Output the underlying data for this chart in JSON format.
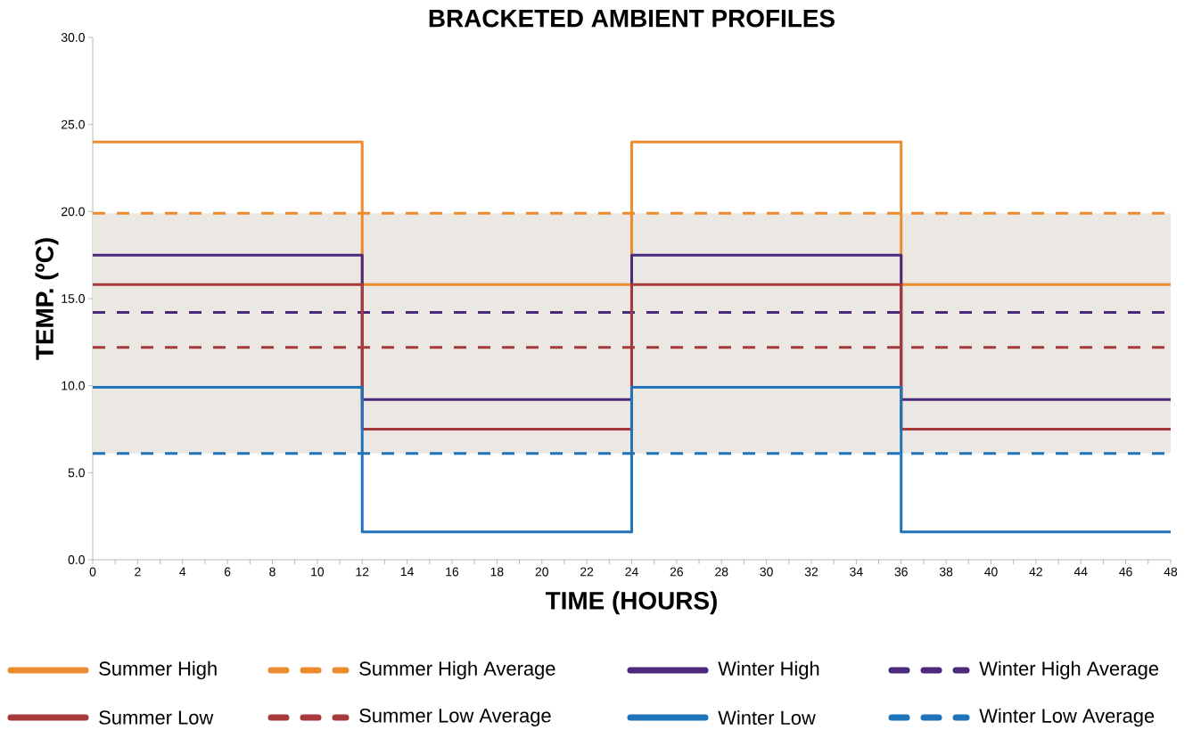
{
  "chart_data": {
    "type": "step",
    "title": "BRACKETED AMBIENT PROFILES",
    "xlabel": "TIME (HOURS)",
    "ylabel": "TEMP. (ºC)",
    "xlim": [
      0,
      48
    ],
    "ylim": [
      0,
      30
    ],
    "xticks": [
      0,
      {
        "value": 1,
        "label": null
      },
      2,
      {
        "value": 3,
        "label": null
      },
      4,
      {
        "value": 5,
        "label": null
      },
      6,
      {
        "value": 7,
        "label": null
      },
      8,
      {
        "value": 9,
        "label": null
      },
      10,
      {
        "value": 11,
        "label": null
      },
      12,
      {
        "value": 13,
        "label": null
      },
      14,
      {
        "value": 15,
        "label": null
      },
      16,
      {
        "value": 17,
        "label": null
      },
      18,
      {
        "value": 19,
        "label": null
      },
      20,
      {
        "value": 21,
        "label": null
      },
      22,
      {
        "value": 23,
        "label": null
      },
      24,
      {
        "value": 25,
        "label": null
      },
      26,
      {
        "value": 27,
        "label": null
      },
      28,
      {
        "value": 29,
        "label": null
      },
      30,
      {
        "value": 31,
        "label": null
      },
      32,
      {
        "value": 33,
        "label": null
      },
      34,
      {
        "value": 35,
        "label": null
      },
      36,
      {
        "value": 37,
        "label": null
      },
      38,
      {
        "value": 39,
        "label": null
      },
      40,
      {
        "value": 41,
        "label": null
      },
      42,
      {
        "value": 43,
        "label": null
      },
      44,
      {
        "value": 45,
        "label": null
      },
      46,
      {
        "value": 47,
        "label": null
      },
      48
    ],
    "yticks": [
      {
        "value": 0,
        "label": "0.0"
      },
      {
        "value": 5,
        "label": "5.0"
      },
      {
        "value": 10,
        "label": "10.0"
      },
      {
        "value": 15,
        "label": "15.0"
      },
      {
        "value": 20,
        "label": "20.0"
      },
      {
        "value": 25,
        "label": "25.0"
      },
      {
        "value": 30,
        "label": "30.0"
      }
    ],
    "legend": "bottom",
    "line_style": "solid",
    "bands": [
      {
        "axis": "y",
        "from": 6.1,
        "to": 19.9,
        "color": "#ebe7e3"
      }
    ],
    "series": [
      {
        "name": "Summer High",
        "color": "#ed8b2f",
        "type": "step",
        "x": [
          0,
          12,
          24,
          36,
          48
        ],
        "values": [
          24,
          15.8,
          24,
          15.8,
          15.8
        ]
      },
      {
        "name": "Summer High Average",
        "color": "#ed8b2f",
        "type": "line",
        "line_style": "dashed",
        "x": [
          0,
          48
        ],
        "values": [
          19.9,
          19.9
        ]
      },
      {
        "name": "Winter High",
        "color": "#4b2a7b",
        "type": "step",
        "x": [
          0,
          12,
          24,
          36,
          48
        ],
        "values": [
          17.5,
          9.2,
          17.5,
          9.2,
          9.2
        ]
      },
      {
        "name": "Winter High Average",
        "color": "#4b2a7b",
        "type": "line",
        "line_style": "dashed",
        "x": [
          0,
          48
        ],
        "values": [
          14.2,
          14.2
        ]
      },
      {
        "name": "Summer Low",
        "color": "#a8393a",
        "type": "step",
        "x": [
          0,
          12,
          24,
          36,
          48
        ],
        "values": [
          15.8,
          7.5,
          15.8,
          7.5,
          7.5
        ]
      },
      {
        "name": "Summer Low Average",
        "color": "#a8393a",
        "type": "line",
        "line_style": "dashed",
        "x": [
          0,
          48
        ],
        "values": [
          12.2,
          12.2
        ]
      },
      {
        "name": "Winter Low",
        "color": "#1f73b8",
        "type": "step",
        "x": [
          0,
          12,
          24,
          36,
          48
        ],
        "values": [
          9.9,
          1.6,
          9.9,
          1.6,
          1.6
        ]
      },
      {
        "name": "Winter Low Average",
        "color": "#1f73b8",
        "type": "line",
        "line_style": "dashed",
        "x": [
          0,
          48
        ],
        "values": [
          6.1,
          6.1
        ]
      }
    ]
  }
}
